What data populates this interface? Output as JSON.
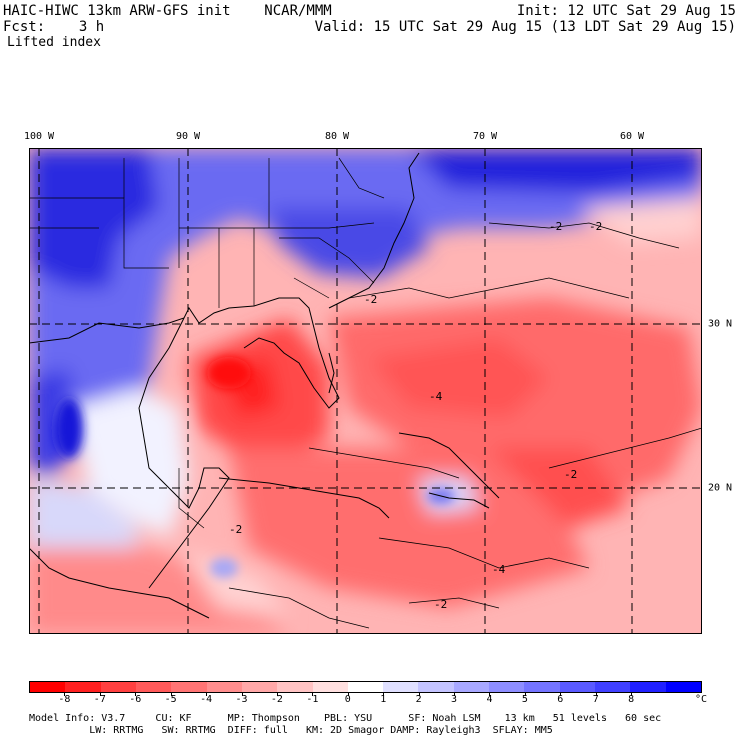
{
  "header": {
    "title": "HAIC-HIWC 13km ARW-GFS init    NCAR/MMM",
    "init": "Init: 12 UTC Sat 29 Aug 15",
    "fcst": "Fcst:    3 h",
    "valid": "Valid: 15 UTC Sat 29 Aug 15 (13 LDT Sat 29 Aug 15)",
    "field": "Lifted index"
  },
  "map": {
    "lon_labels": [
      "100 W",
      "90 W",
      "80 W",
      "70 W",
      "60 W"
    ],
    "lat_labels": [
      "30 N",
      "20 N"
    ],
    "contour_labels": [
      "-2",
      "-2",
      "-2",
      "-2",
      "-2",
      "-4",
      "-4",
      "-2"
    ]
  },
  "colorbar": {
    "colors": [
      "#ff0000",
      "#ff2020",
      "#ff4040",
      "#ff5a5a",
      "#ff7474",
      "#ff8e8e",
      "#ffa8a8",
      "#ffc4c4",
      "#ffe0e0",
      "#ffffff",
      "#e0e0ff",
      "#c4c4ff",
      "#a8a8ff",
      "#8e8eff",
      "#7474ff",
      "#5a5aff",
      "#4040ff",
      "#2020ff",
      "#0000ff"
    ],
    "ticks": [
      "-8",
      "-7",
      "-6",
      "-5",
      "-4",
      "-3",
      "-2",
      "-1",
      "0",
      "1",
      "2",
      "3",
      "4",
      "5",
      "6",
      "7",
      "8"
    ],
    "unit": "°C"
  },
  "model_info": {
    "line1": "Model Info: V3.7     CU: KF      MP: Thompson    PBL: YSU      SF: Noah LSM    13 km   51 levels   60 sec",
    "line2": "          LW: RRTMG   SW: RRTMG  DIFF: full   KM: 2D Smagor DAMP: Rayleigh3  SFLAY: MM5"
  }
}
